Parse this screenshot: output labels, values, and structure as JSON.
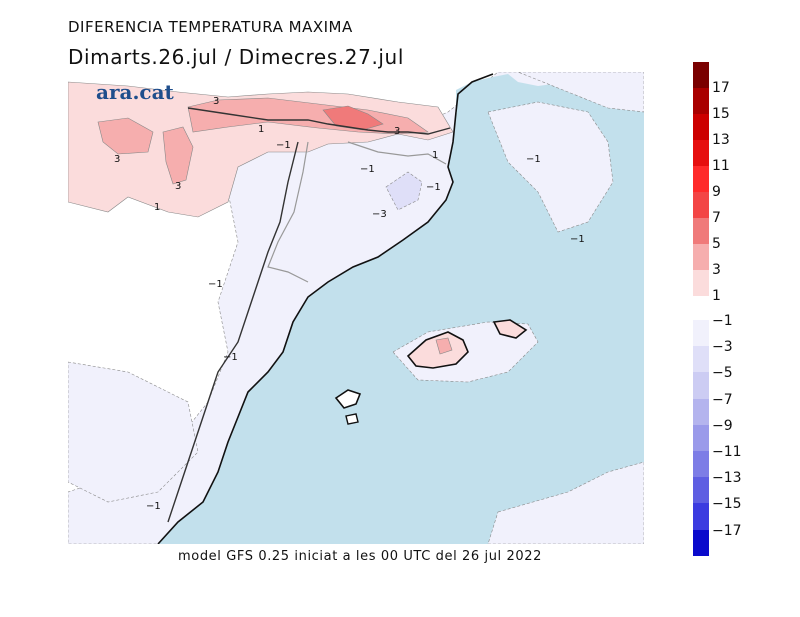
{
  "header": {
    "title": "DIFERENCIA TEMPERATURA MAXIMA",
    "subtitle": "Dimarts.26.jul / Dimecres.27.jul"
  },
  "logo": {
    "text": "ara.cat"
  },
  "footer": {
    "text": "model GFS 0.25 iniciat a les 00 UTC del 26 jul 2022"
  },
  "legend": {
    "labels": [
      "17",
      "15",
      "13",
      "11",
      "9",
      "7",
      "5",
      "3",
      "1",
      "−1",
      "−3",
      "−5",
      "−7",
      "−9",
      "−11",
      "−13",
      "−15",
      "−17"
    ],
    "positive_colors": [
      "#7a0000",
      "#a90000",
      "#cc0000",
      "#e60f0f",
      "#ff2a2a",
      "#f34545",
      "#f07a7a",
      "#f6aeae",
      "#fbdcdc"
    ],
    "negative_colors": [
      "#f1f1fc",
      "#dfdff8",
      "#ccccf3",
      "#b4b4ee",
      "#9a9aea",
      "#7d7de6",
      "#5e5ee2",
      "#3b3be0",
      "#0a0acc"
    ]
  },
  "map": {
    "sea_color": "#c2e0ec",
    "contour_labels": [
      "3",
      "3",
      "3",
      "1",
      "−1",
      "1",
      "3",
      "1",
      "−1",
      "−1",
      "−3",
      "−1",
      "−1",
      "−1",
      "−1",
      "−1"
    ]
  }
}
